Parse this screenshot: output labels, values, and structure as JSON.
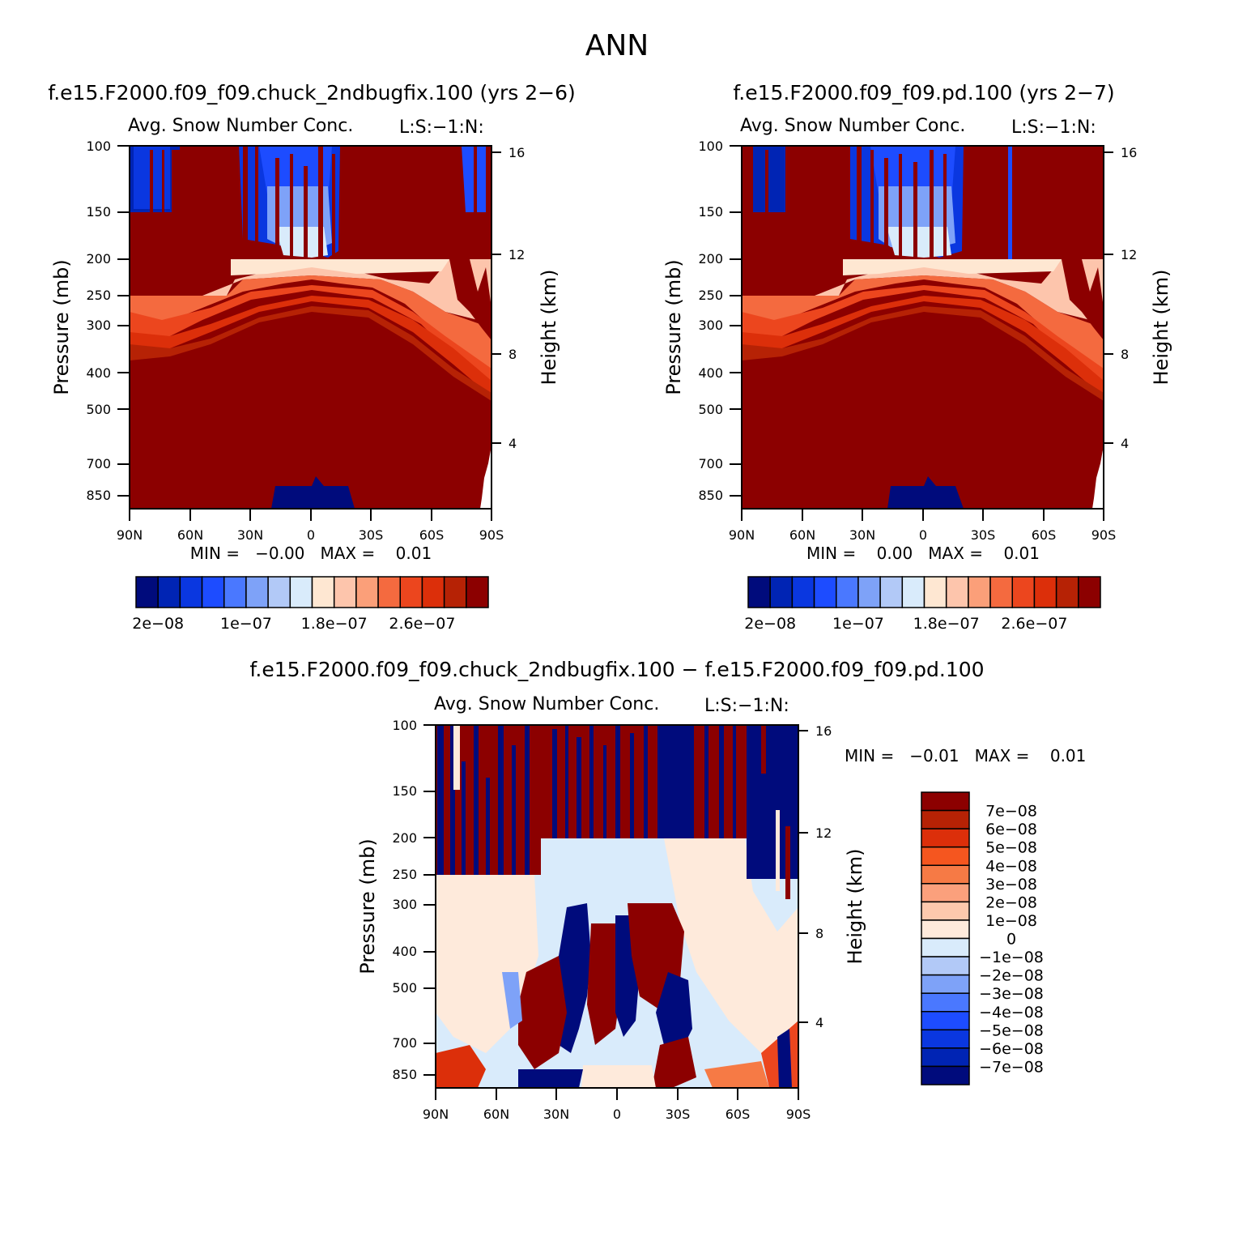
{
  "page_title": "ANN",
  "panels": [
    {
      "case_title": "f.e15.F2000.f09_f09.chuck_2ndbugfix.100 (yrs 2−6)",
      "variable_title": "Avg. Snow Number Conc.",
      "units_label": "L:S:−1:N:",
      "y_label": "Pressure (mb)",
      "y2_label": "Height (km)",
      "minmax": "MIN =   −0.00   MAX =    0.01"
    },
    {
      "case_title": "f.e15.F2000.f09_f09.pd.100 (yrs 2−7)",
      "variable_title": "Avg. Snow Number Conc.",
      "units_label": "L:S:−1:N:",
      "y_label": "Pressure (mb)",
      "y2_label": "Height (km)",
      "minmax": "MIN =    0.00   MAX =    0.01"
    },
    {
      "case_title": "f.e15.F2000.f09_f09.chuck_2ndbugfix.100 − f.e15.F2000.f09_f09.pd.100",
      "variable_title": "Avg. Snow Number Conc.",
      "units_label": "L:S:−1:N:",
      "y_label": "Pressure (mb)",
      "y2_label": "Height (km)",
      "minmax": "MIN =   −0.01   MAX =    0.01"
    }
  ],
  "chart_data": [
    {
      "type": "heatmap",
      "subtype": "filled-contour latitude-pressure cross section",
      "title": "f.e15.F2000.f09_f09.chuck_2ndbugfix.100 (yrs 2−6)",
      "x_ticks": [
        "90N",
        "60N",
        "30N",
        "0",
        "30S",
        "60S",
        "90S"
      ],
      "y_ticks": [
        "100",
        "150",
        "200",
        "250",
        "300",
        "400",
        "500",
        "700",
        "850"
      ],
      "y_range_mb": [
        100,
        950
      ],
      "y2_ticks": [
        "16",
        "12",
        "8",
        "4"
      ],
      "colorbar_labels": [
        "2e−08",
        "1e−07",
        "1.8e−07",
        "2.6e−07"
      ],
      "colorbar_colors": [
        "#000b7c",
        "#0024b4",
        "#0a37e0",
        "#1d4cff",
        "#4a78ff",
        "#7ea2f8",
        "#b2c9f7",
        "#d9ebfb",
        "#fee7d2",
        "#fdc5ac",
        "#fb9f79",
        "#f46a3f",
        "#ec461e",
        "#dc2f0a",
        "#b62205",
        "#8c0000"
      ]
    },
    {
      "type": "heatmap",
      "subtype": "filled-contour latitude-pressure cross section",
      "title": "f.e15.F2000.f09_f09.pd.100 (yrs 2−7)",
      "x_ticks": [
        "90N",
        "60N",
        "30N",
        "0",
        "30S",
        "60S",
        "90S"
      ],
      "y_ticks": [
        "100",
        "150",
        "200",
        "250",
        "300",
        "400",
        "500",
        "700",
        "850"
      ],
      "y_range_mb": [
        100,
        950
      ],
      "y2_ticks": [
        "16",
        "12",
        "8",
        "4"
      ],
      "colorbar_labels": [
        "2e−08",
        "1e−07",
        "1.8e−07",
        "2.6e−07"
      ],
      "colorbar_colors": [
        "#000b7c",
        "#0024b4",
        "#0a37e0",
        "#1d4cff",
        "#4a78ff",
        "#7ea2f8",
        "#b2c9f7",
        "#d9ebfb",
        "#fee7d2",
        "#fdc5ac",
        "#fb9f79",
        "#f46a3f",
        "#ec461e",
        "#dc2f0a",
        "#b62205",
        "#8c0000"
      ]
    },
    {
      "type": "heatmap",
      "subtype": "filled-contour difference cross section",
      "title": "f.e15.F2000.f09_f09.chuck_2ndbugfix.100 − f.e15.F2000.f09_f09.pd.100",
      "x_ticks": [
        "90N",
        "60N",
        "30N",
        "0",
        "30S",
        "60S",
        "90S"
      ],
      "y_ticks": [
        "100",
        "150",
        "200",
        "250",
        "300",
        "400",
        "500",
        "700",
        "850"
      ],
      "y_range_mb": [
        100,
        950
      ],
      "y2_ticks": [
        "16",
        "12",
        "8",
        "4"
      ],
      "colorbar_labels": [
        "7e−08",
        "6e−08",
        "5e−08",
        "4e−08",
        "3e−08",
        "2e−08",
        "1e−08",
        "0",
        "−1e−08",
        "−2e−08",
        "−3e−08",
        "−4e−08",
        "−5e−08",
        "−6e−08",
        "−7e−08"
      ],
      "colorbar_colors": [
        "#8c0000",
        "#b62205",
        "#dc2f0a",
        "#f5561f",
        "#f67a45",
        "#fba07c",
        "#fdc9ad",
        "#feeadb",
        "#d9ebfb",
        "#b2c9f7",
        "#7ea2f8",
        "#4a78ff",
        "#1d4cff",
        "#0a37e0",
        "#0024b4",
        "#000b7c"
      ]
    }
  ]
}
